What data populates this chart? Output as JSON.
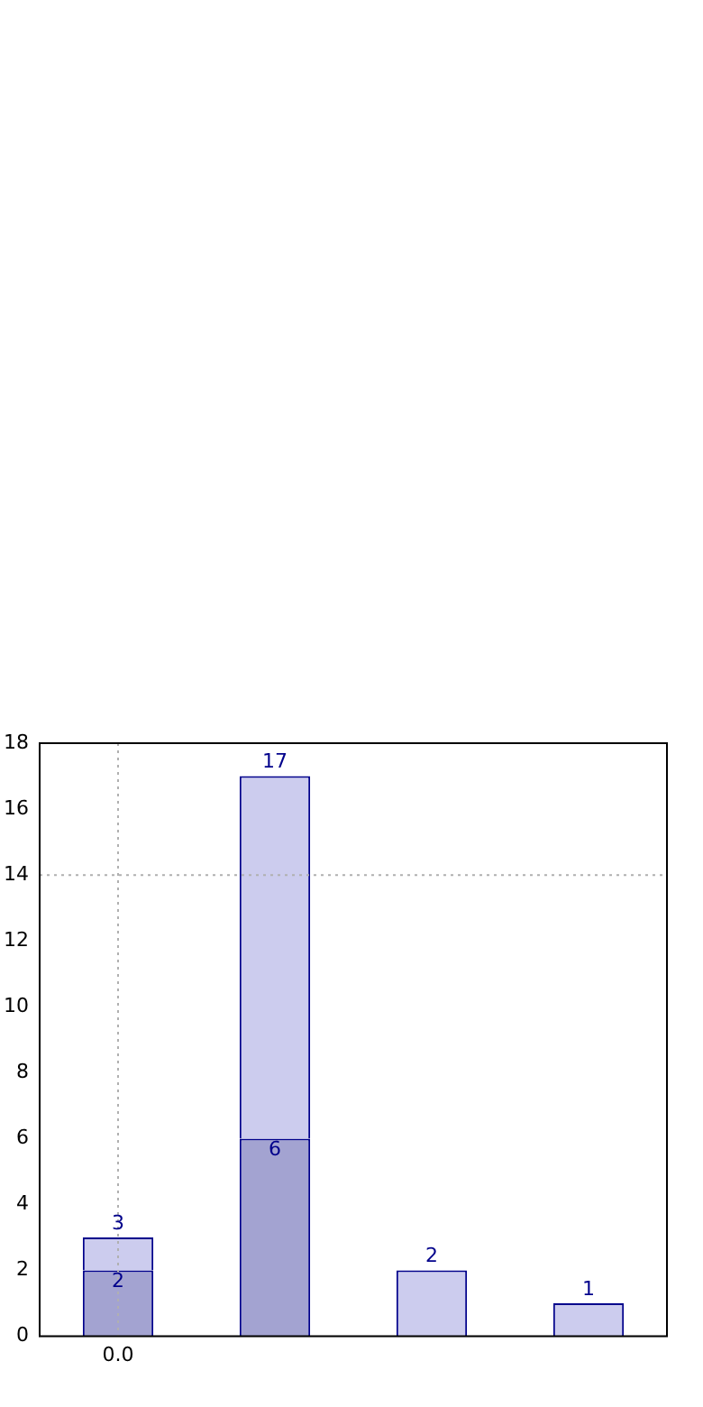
{
  "chart_data": {
    "type": "bar",
    "categories": [
      "0.0",
      null,
      null,
      null
    ],
    "stacked": true,
    "series": [
      {
        "color": "#a3a3d1",
        "values": [
          2,
          6,
          null,
          null
        ],
        "value_labels": [
          "2",
          "6",
          null,
          null
        ]
      },
      {
        "color": "#ccccee",
        "values": [
          1,
          11,
          2,
          1
        ]
      }
    ],
    "totals": [
      "3",
      "17",
      "2",
      "1"
    ],
    "ylim": [
      0,
      18
    ],
    "yticks": [
      0,
      2,
      4,
      6,
      8,
      10,
      12,
      14,
      16,
      18
    ],
    "ref_lines": [
      {
        "axis": "y",
        "value": 14,
        "line_style": "dotted",
        "color": "#b0b0b0"
      },
      {
        "axis": "x",
        "value": "0.0",
        "line_style": "dotted",
        "color": "#b0b0b0"
      }
    ]
  }
}
